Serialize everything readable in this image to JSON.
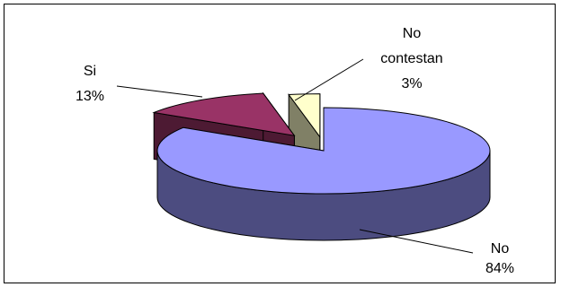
{
  "chart_data": {
    "type": "pie",
    "variant": "3d-exploded",
    "title": "",
    "slices": [
      {
        "name": "No",
        "value": 84,
        "label_lines": [
          "No",
          "84%"
        ],
        "color": "#9999ff",
        "side_color": "#4c4c80"
      },
      {
        "name": "Si",
        "value": 13,
        "label_lines": [
          "Si",
          "13%"
        ],
        "color": "#993366",
        "side_color": "#4d1a33"
      },
      {
        "name": "No contestan",
        "value": 3,
        "label_lines": [
          "No",
          "contestan",
          "3%"
        ],
        "color": "#ffffcc",
        "side_color": "#808066"
      }
    ],
    "legend": "none"
  }
}
